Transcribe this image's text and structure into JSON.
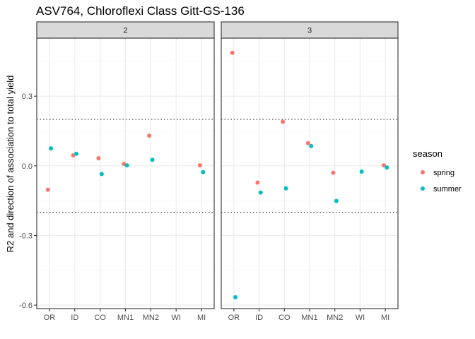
{
  "chart_data": {
    "type": "scatter",
    "title": "ASV764, Chloroflexi Class Gitt-GS-136",
    "xlabel": "",
    "ylabel": "R2 and direction of association to total yield",
    "ylim": [
      -0.615,
      0.55
    ],
    "yticks": [
      -0.6,
      -0.3,
      0.0,
      0.3
    ],
    "ytick_labels": [
      "-0.6",
      "-0.3",
      "0.0",
      "0.3"
    ],
    "categories": [
      "OR",
      "ID",
      "CO",
      "MN1",
      "MN2",
      "WI",
      "MI"
    ],
    "reference_lines": [
      0.2,
      -0.2
    ],
    "facets": [
      {
        "label": "2",
        "series": [
          {
            "name": "spring",
            "color": "#F8766D",
            "points": [
              [
                "OR",
                -0.103
              ],
              [
                "ID",
                0.045
              ],
              [
                "CO",
                0.033
              ],
              [
                "MN1",
                0.008
              ],
              [
                "MN2",
                0.13
              ],
              [
                "MI",
                0.002
              ]
            ]
          },
          {
            "name": "summer",
            "color": "#00BFC4",
            "points": [
              [
                "OR",
                0.075
              ],
              [
                "ID",
                0.052
              ],
              [
                "CO",
                -0.035
              ],
              [
                "MN1",
                0.002
              ],
              [
                "MN2",
                0.026
              ],
              [
                "MI",
                -0.027
              ]
            ]
          }
        ]
      },
      {
        "label": "3",
        "series": [
          {
            "name": "spring",
            "color": "#F8766D",
            "points": [
              [
                "OR",
                0.487
              ],
              [
                "ID",
                -0.072
              ],
              [
                "CO",
                0.19
              ],
              [
                "MN1",
                0.098
              ],
              [
                "MN2",
                -0.03
              ],
              [
                "MI",
                0.002
              ]
            ]
          },
          {
            "name": "summer",
            "color": "#00BFC4",
            "points": [
              [
                "OR",
                -0.566
              ],
              [
                "ID",
                -0.115
              ],
              [
                "CO",
                -0.097
              ],
              [
                "MN1",
                0.085
              ],
              [
                "MN2",
                -0.151
              ],
              [
                "WI",
                -0.025
              ],
              [
                "MI",
                -0.007
              ]
            ]
          }
        ]
      }
    ],
    "legend": {
      "title": "season",
      "position": "right",
      "entries": [
        {
          "label": "spring",
          "color": "#F8766D"
        },
        {
          "label": "summer",
          "color": "#00BFC4"
        }
      ]
    }
  }
}
